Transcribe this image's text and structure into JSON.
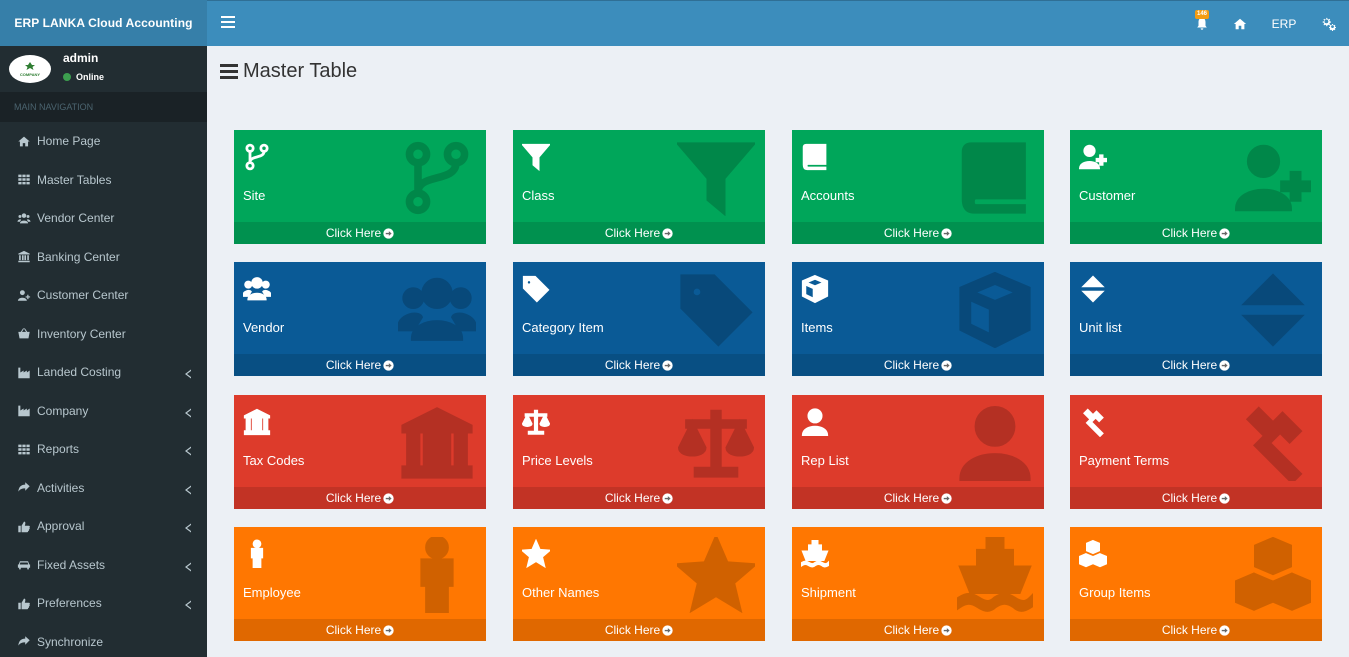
{
  "app": {
    "title": "ERP LANKA Cloud Accounting"
  },
  "user": {
    "name": "admin",
    "status": "Online",
    "avatar_text": "COMPANY"
  },
  "sidebar": {
    "header": "MAIN NAVIGATION",
    "items": [
      {
        "label": "Home Page",
        "icon": "home-icon",
        "expandable": false
      },
      {
        "label": "Master Tables",
        "icon": "grid-icon",
        "expandable": false
      },
      {
        "label": "Vendor Center",
        "icon": "users-icon",
        "expandable": false
      },
      {
        "label": "Banking Center",
        "icon": "bank-icon",
        "expandable": false
      },
      {
        "label": "Customer Center",
        "icon": "user-plus-icon",
        "expandable": false
      },
      {
        "label": "Inventory Center",
        "icon": "basket-icon",
        "expandable": false
      },
      {
        "label": "Landed Costing",
        "icon": "industry-icon",
        "expandable": true
      },
      {
        "label": "Company",
        "icon": "industry-icon",
        "expandable": true
      },
      {
        "label": "Reports",
        "icon": "grid-icon",
        "expandable": true
      },
      {
        "label": "Activities",
        "icon": "share-icon",
        "expandable": true
      },
      {
        "label": "Approval",
        "icon": "thumbs-up-icon",
        "expandable": true
      },
      {
        "label": "Fixed Assets",
        "icon": "car-icon",
        "expandable": true
      },
      {
        "label": "Preferences",
        "icon": "thumbs-up-icon",
        "expandable": true
      },
      {
        "label": "Synchronize",
        "icon": "share-icon",
        "expandable": false
      }
    ]
  },
  "header": {
    "notification_count": "146",
    "erp_label": "ERP"
  },
  "page": {
    "title": "Master Table"
  },
  "tiles": [
    {
      "label": "Site",
      "icon": "code-branch-icon",
      "color": "#00a65a",
      "footer": "Click Here"
    },
    {
      "label": "Class",
      "icon": "filter-icon",
      "color": "#00a65a",
      "footer": "Click Here"
    },
    {
      "label": "Accounts",
      "icon": "book-icon",
      "color": "#00a65a",
      "footer": "Click Here"
    },
    {
      "label": "Customer",
      "icon": "user-plus-icon",
      "color": "#00a65a",
      "footer": "Click Here"
    },
    {
      "label": "Vendor",
      "icon": "users-icon",
      "color": "#0a5a96",
      "footer": "Click Here"
    },
    {
      "label": "Category Item",
      "icon": "tag-icon",
      "color": "#0a5a96",
      "footer": "Click Here"
    },
    {
      "label": "Items",
      "icon": "cube-icon",
      "color": "#0a5a96",
      "footer": "Click Here"
    },
    {
      "label": "Unit list",
      "icon": "sort-icon",
      "color": "#0a5a96",
      "footer": "Click Here"
    },
    {
      "label": "Tax Codes",
      "icon": "bank-icon",
      "color": "#dd3b2b",
      "footer": "Click Here"
    },
    {
      "label": "Price Levels",
      "icon": "balance-scale-icon",
      "color": "#dd3b2b",
      "footer": "Click Here"
    },
    {
      "label": "Rep List",
      "icon": "user-icon",
      "color": "#dd3b2b",
      "footer": "Click Here"
    },
    {
      "label": "Payment Terms",
      "icon": "gavel-icon",
      "color": "#dd3b2b",
      "footer": "Click Here"
    },
    {
      "label": "Employee",
      "icon": "male-icon",
      "color": "#ff7701",
      "footer": "Click Here"
    },
    {
      "label": "Other Names",
      "icon": "star-icon",
      "color": "#ff7701",
      "footer": "Click Here"
    },
    {
      "label": "Shipment",
      "icon": "ship-icon",
      "color": "#ff7701",
      "footer": "Click Here"
    },
    {
      "label": "Group Items",
      "icon": "cubes-icon",
      "color": "#ff7701",
      "footer": "Click Here"
    }
  ]
}
